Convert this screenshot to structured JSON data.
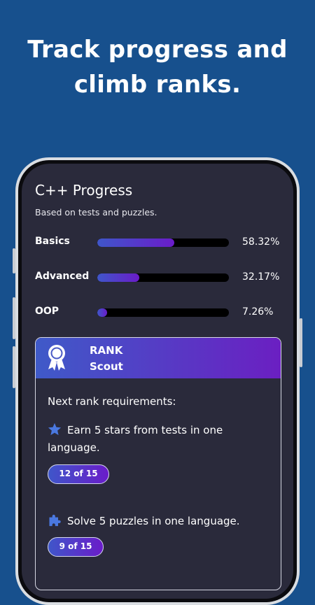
{
  "headline": {
    "line1": "Track progress and",
    "line2": "climb ranks."
  },
  "screen": {
    "title": "C++ Progress",
    "subtitle": "Based on tests and puzzles.",
    "progress": [
      {
        "label": "Basics",
        "value_text": "58.32%",
        "percent": 58.32
      },
      {
        "label": "Advanced",
        "value_text": "32.17%",
        "percent": 32.17
      },
      {
        "label": "OOP",
        "value_text": "7.26%",
        "percent": 7.26
      }
    ],
    "rank": {
      "label": "RANK",
      "name": "Scout",
      "icon": "award-ribbon-icon",
      "requirements_title": "Next rank requirements:",
      "requirements": [
        {
          "icon": "star-icon",
          "text": "Earn 5 stars from tests in one language.",
          "badge": "12 of 15"
        },
        {
          "icon": "puzzle-piece-icon",
          "text": "Solve 5 puzzles in one language.",
          "badge": "9 of 15"
        }
      ]
    }
  },
  "colors": {
    "background": "#17508d",
    "screen": "#2a2a3b",
    "gradient_start": "#3f56c9",
    "gradient_end": "#6a1cc9",
    "icon_blue": "#4a78e0"
  }
}
